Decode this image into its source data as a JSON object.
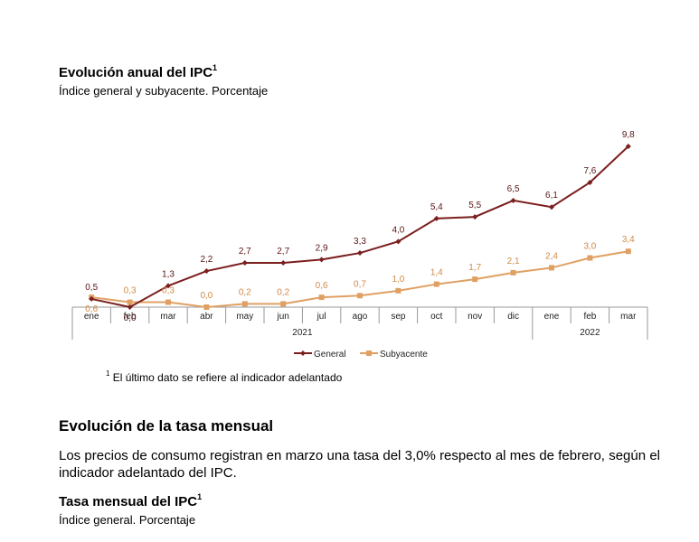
{
  "chart_section": {
    "title": "Evolución anual del IPC",
    "title_sup": "1",
    "subtitle": "Índice general y subyacente. Porcentaje",
    "footnote_sup": "1",
    "footnote": "El último dato se refiere al indicador adelantado"
  },
  "chart_data": {
    "type": "line",
    "categories": [
      "ene",
      "feb",
      "mar",
      "abr",
      "may",
      "jun",
      "jul",
      "ago",
      "sep",
      "oct",
      "nov",
      "dic",
      "ene",
      "feb",
      "mar"
    ],
    "year_groups": [
      {
        "label": "2021",
        "from": 0,
        "to": 11
      },
      {
        "label": "2022",
        "from": 12,
        "to": 14
      }
    ],
    "series": [
      {
        "name": "General",
        "color": "#7b1e1e",
        "values": [
          0.5,
          0.0,
          1.3,
          2.2,
          2.7,
          2.7,
          2.9,
          3.3,
          4.0,
          5.4,
          5.5,
          6.5,
          6.1,
          7.6,
          9.8
        ],
        "labels": [
          "0,5",
          "0,0",
          "1,3",
          "2,2",
          "2,7",
          "2,7",
          "2,9",
          "3,3",
          "4,0",
          "5,4",
          "5,5",
          "6,5",
          "6,1",
          "7,6",
          "9,8"
        ]
      },
      {
        "name": "Subyacente",
        "color": "#e0a063",
        "values": [
          0.6,
          0.3,
          0.3,
          0.0,
          0.2,
          0.2,
          0.6,
          0.7,
          1.0,
          1.4,
          1.7,
          2.1,
          2.4,
          3.0,
          3.4
        ],
        "labels": [
          "0,6",
          "0,3",
          "0,3",
          "0,0",
          "0,2",
          "0,2",
          "0,6",
          "0,7",
          "1,0",
          "1,4",
          "1,7",
          "2,1",
          "2,4",
          "3,0",
          "3,4"
        ]
      }
    ],
    "ylim": [
      0,
      10
    ],
    "legend": "bottom"
  },
  "section2": {
    "heading": "Evolución de la tasa mensual",
    "paragraph": "Los precios de consumo registran en marzo una tasa del 3,0% respecto al mes de febrero, según el indicador adelantado del IPC.",
    "sub_heading": "Tasa mensual del IPC",
    "sub_heading_sup": "1",
    "sub_subtitle": "Índice general. Porcentaje"
  }
}
